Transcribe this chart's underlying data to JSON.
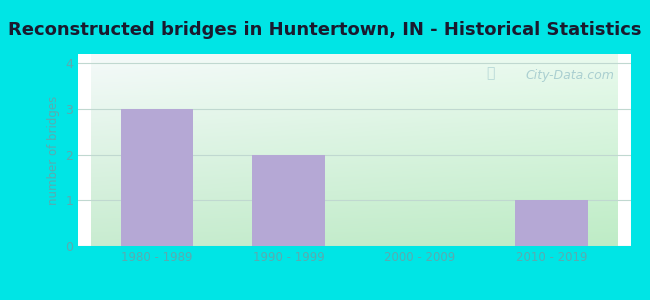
{
  "title": "Reconstructed bridges in Huntertown, IN - Historical Statistics",
  "categories": [
    "1980 - 1989",
    "1990 - 1999",
    "2000 - 2009",
    "2010 - 2019"
  ],
  "values": [
    3,
    2,
    0,
    1
  ],
  "bar_color": "#b5a8d5",
  "ylabel": "number of bridges",
  "ylim": [
    0,
    4.2
  ],
  "yticks": [
    0,
    1,
    2,
    3,
    4
  ],
  "title_fontsize": 13,
  "title_fontweight": "bold",
  "title_color": "#1a1a2e",
  "tick_color": "#5aabb0",
  "label_color": "#5aabb0",
  "background_outer": "#00e5e5",
  "bg_color_topleft": "#e8f5e8",
  "bg_color_topright": "#f5fafa",
  "bg_color_bottomleft": "#c8ecd0",
  "bg_color_bottomright": "#e0f5f5",
  "grid_color": "#c0d8d0",
  "watermark": "City-Data.com"
}
